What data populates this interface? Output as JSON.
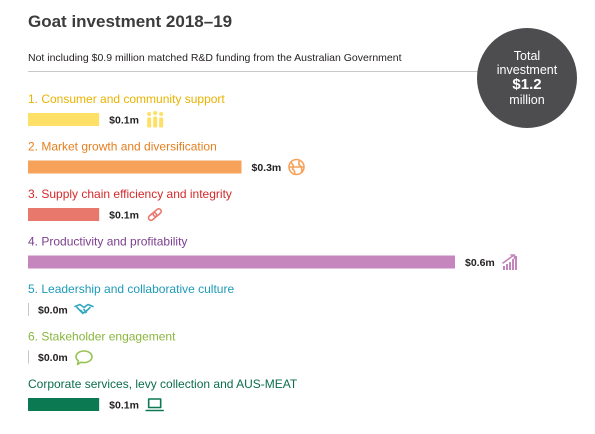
{
  "title": "Goat investment 2018–19",
  "subtitle": "Not including $0.9 million matched R&D funding from the Australian Government",
  "total": {
    "line1": "Total",
    "line2": "investment",
    "value": "$1.2",
    "unit": "million"
  },
  "chart_data": {
    "type": "bar",
    "orientation": "horizontal",
    "title": "Goat investment 2018–19",
    "subtitle": "Not including $0.9 million matched R&D funding from the Australian Government",
    "unit": "$ million",
    "xlim": [
      0,
      0.6
    ],
    "categories": [
      "1. Consumer and community support",
      "2. Market growth and diversification",
      "3. Supply chain efficiency and integrity",
      "4. Productivity and profitability",
      "5. Leadership and collaborative culture",
      "6. Stakeholder engagement",
      "Corporate services, levy collection and AUS-MEAT"
    ],
    "values": [
      0.1,
      0.3,
      0.1,
      0.6,
      0.0,
      0.0,
      0.1
    ],
    "value_labels": [
      "$0.1m",
      "$0.3m",
      "$0.1m",
      "$0.6m",
      "$0.0m",
      "$0.0m",
      "$0.1m"
    ],
    "colors": [
      "#ffe066",
      "#f7a25a",
      "#e8776c",
      "#c486bd",
      "#30a7c1",
      "#98c355",
      "#0b7a52"
    ],
    "label_colors": [
      "#e8b300",
      "#e57f1f",
      "#d4292a",
      "#7b3f8e",
      "#1e9ab8",
      "#8ab63f",
      "#0b6e4a"
    ],
    "icons": [
      "people-icon",
      "globe-icon",
      "chain-link-icon",
      "growth-chart-icon",
      "handshake-icon",
      "speech-bubble-icon",
      "laptop-icon"
    ]
  }
}
